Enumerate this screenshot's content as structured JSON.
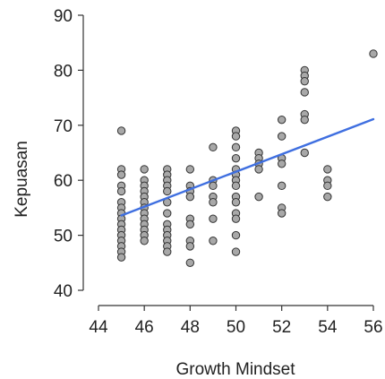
{
  "chart_data": {
    "type": "scatter",
    "title": "",
    "xlabel": "Growth Mindset",
    "ylabel": "Kepuasan",
    "xlim": [
      44,
      56
    ],
    "ylim": [
      40,
      90
    ],
    "xticks": [
      "44",
      "46",
      "48",
      "50",
      "52",
      "54",
      "56"
    ],
    "yticks": [
      "40",
      "50",
      "60",
      "70",
      "80",
      "90"
    ],
    "grid": false,
    "legend": "none",
    "point_fill": "#a8a8a8",
    "point_stroke": "#333333",
    "line_color": "#3f6fe0",
    "series": [
      {
        "points": [
          [
            45,
            69
          ],
          [
            45,
            62
          ],
          [
            45,
            61
          ],
          [
            45,
            59
          ],
          [
            45,
            58
          ],
          [
            45,
            56
          ],
          [
            45,
            55
          ],
          [
            45,
            54
          ],
          [
            45,
            53
          ],
          [
            45,
            52
          ],
          [
            45,
            51
          ],
          [
            45,
            50
          ],
          [
            45,
            49
          ],
          [
            45,
            48
          ],
          [
            45,
            47
          ],
          [
            45,
            46
          ],
          [
            46,
            62
          ],
          [
            46,
            60
          ],
          [
            46,
            59
          ],
          [
            46,
            58
          ],
          [
            46,
            57
          ],
          [
            46,
            56
          ],
          [
            46,
            55
          ],
          [
            46,
            54
          ],
          [
            46,
            53
          ],
          [
            46,
            52
          ],
          [
            46,
            51
          ],
          [
            46,
            50
          ],
          [
            46,
            49
          ],
          [
            47,
            62
          ],
          [
            47,
            61
          ],
          [
            47,
            60
          ],
          [
            47,
            59
          ],
          [
            47,
            58
          ],
          [
            47,
            56
          ],
          [
            47,
            54
          ],
          [
            47,
            52
          ],
          [
            47,
            51
          ],
          [
            47,
            50
          ],
          [
            47,
            49
          ],
          [
            47,
            48
          ],
          [
            47,
            47
          ],
          [
            48,
            62
          ],
          [
            48,
            59
          ],
          [
            48,
            58
          ],
          [
            48,
            57
          ],
          [
            48,
            53
          ],
          [
            48,
            52
          ],
          [
            48,
            49
          ],
          [
            48,
            48
          ],
          [
            48,
            45
          ],
          [
            49,
            66
          ],
          [
            49,
            60
          ],
          [
            49,
            59
          ],
          [
            49,
            57
          ],
          [
            49,
            56
          ],
          [
            49,
            53
          ],
          [
            49,
            49
          ],
          [
            50,
            69
          ],
          [
            50,
            68
          ],
          [
            50,
            66
          ],
          [
            50,
            64
          ],
          [
            50,
            62
          ],
          [
            50,
            61
          ],
          [
            50,
            60
          ],
          [
            50,
            59
          ],
          [
            50,
            57
          ],
          [
            50,
            56
          ],
          [
            50,
            54
          ],
          [
            50,
            53
          ],
          [
            50,
            50
          ],
          [
            50,
            47
          ],
          [
            51,
            65
          ],
          [
            51,
            64
          ],
          [
            51,
            63
          ],
          [
            51,
            62
          ],
          [
            51,
            57
          ],
          [
            52,
            71
          ],
          [
            52,
            68
          ],
          [
            52,
            64
          ],
          [
            52,
            63
          ],
          [
            52,
            59
          ],
          [
            52,
            55
          ],
          [
            52,
            54
          ],
          [
            53,
            80
          ],
          [
            53,
            79
          ],
          [
            53,
            78
          ],
          [
            53,
            76
          ],
          [
            53,
            72
          ],
          [
            53,
            71
          ],
          [
            53,
            65
          ],
          [
            54,
            62
          ],
          [
            54,
            60
          ],
          [
            54,
            59
          ],
          [
            54,
            57
          ],
          [
            56,
            83
          ]
        ]
      }
    ],
    "trendline": {
      "x": [
        45,
        56
      ],
      "y": [
        53.6,
        71.1
      ]
    }
  }
}
